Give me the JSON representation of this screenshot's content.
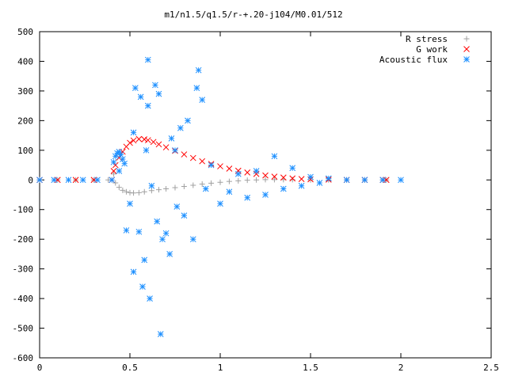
{
  "chart_data": {
    "type": "scatter",
    "title": "m1/n1.5/q1.5/r-+.20-j104/M0.01/512",
    "xlabel": "",
    "ylabel": "",
    "xlim": [
      0,
      2.5
    ],
    "ylim": [
      -600,
      500
    ],
    "x_ticks": [
      0,
      0.5,
      1,
      1.5,
      2,
      2.5
    ],
    "x_tick_labels": [
      "0",
      "0.5",
      "1",
      "1.5",
      "2",
      "2.5"
    ],
    "y_ticks": [
      500,
      400,
      300,
      200,
      100,
      0,
      -100,
      -200,
      -300,
      -400,
      -500,
      -600
    ],
    "y_tick_labels": [
      "500",
      "400",
      "300",
      "200",
      "100",
      "0",
      "-100",
      "-200",
      "-300",
      "-400",
      "-500",
      "-600"
    ],
    "grid": false,
    "legend_position": "top-right",
    "series": [
      {
        "name": "R stress",
        "marker": "plus",
        "color": "#a0a0a0",
        "points": [
          [
            0,
            0
          ],
          [
            0.1,
            0
          ],
          [
            0.2,
            0
          ],
          [
            0.3,
            0
          ],
          [
            0.38,
            0
          ],
          [
            0.41,
            20
          ],
          [
            0.42,
            -10
          ],
          [
            0.44,
            -25
          ],
          [
            0.46,
            -35
          ],
          [
            0.48,
            -40
          ],
          [
            0.5,
            -43
          ],
          [
            0.52,
            -44
          ],
          [
            0.55,
            -43
          ],
          [
            0.58,
            -40
          ],
          [
            0.62,
            -36
          ],
          [
            0.66,
            -33
          ],
          [
            0.7,
            -30
          ],
          [
            0.75,
            -26
          ],
          [
            0.8,
            -22
          ],
          [
            0.85,
            -18
          ],
          [
            0.9,
            -14
          ],
          [
            0.95,
            -11
          ],
          [
            1.0,
            -8
          ],
          [
            1.05,
            -5
          ],
          [
            1.1,
            -3
          ],
          [
            1.15,
            -1
          ],
          [
            1.2,
            0
          ],
          [
            1.25,
            1
          ],
          [
            1.3,
            1
          ],
          [
            1.35,
            1
          ],
          [
            1.4,
            1
          ],
          [
            1.5,
            0
          ],
          [
            1.6,
            0
          ],
          [
            1.7,
            0
          ],
          [
            1.8,
            0
          ],
          [
            1.9,
            0
          ],
          [
            1.92,
            0
          ]
        ]
      },
      {
        "name": "G work",
        "marker": "cross",
        "color": "#ff0000",
        "points": [
          [
            0,
            0
          ],
          [
            0.1,
            0
          ],
          [
            0.2,
            0
          ],
          [
            0.3,
            0
          ],
          [
            0.4,
            0
          ],
          [
            0.41,
            30
          ],
          [
            0.42,
            50
          ],
          [
            0.44,
            75
          ],
          [
            0.46,
            95
          ],
          [
            0.48,
            112
          ],
          [
            0.5,
            125
          ],
          [
            0.52,
            133
          ],
          [
            0.55,
            138
          ],
          [
            0.58,
            137
          ],
          [
            0.6,
            134
          ],
          [
            0.63,
            128
          ],
          [
            0.66,
            120
          ],
          [
            0.7,
            110
          ],
          [
            0.75,
            98
          ],
          [
            0.8,
            86
          ],
          [
            0.85,
            74
          ],
          [
            0.9,
            63
          ],
          [
            0.95,
            54
          ],
          [
            1.0,
            46
          ],
          [
            1.05,
            38
          ],
          [
            1.1,
            31
          ],
          [
            1.15,
            25
          ],
          [
            1.2,
            20
          ],
          [
            1.25,
            15
          ],
          [
            1.3,
            11
          ],
          [
            1.35,
            8
          ],
          [
            1.4,
            5
          ],
          [
            1.45,
            3
          ],
          [
            1.5,
            2
          ],
          [
            1.6,
            1
          ],
          [
            1.7,
            0
          ],
          [
            1.8,
            0
          ],
          [
            1.9,
            0
          ],
          [
            1.92,
            0
          ]
        ]
      },
      {
        "name": "Acoustic flux",
        "marker": "star",
        "color": "#1e90ff",
        "points": [
          [
            0,
            0
          ],
          [
            0.08,
            0
          ],
          [
            0.16,
            0
          ],
          [
            0.24,
            0
          ],
          [
            0.32,
            0
          ],
          [
            0.4,
            0
          ],
          [
            0.41,
            60
          ],
          [
            0.42,
            80
          ],
          [
            0.43,
            90
          ],
          [
            0.44,
            95
          ],
          [
            0.45,
            85
          ],
          [
            0.46,
            70
          ],
          [
            0.44,
            30
          ],
          [
            0.47,
            55
          ],
          [
            0.48,
            -170
          ],
          [
            0.5,
            -80
          ],
          [
            0.52,
            -310
          ],
          [
            0.52,
            160
          ],
          [
            0.53,
            310
          ],
          [
            0.55,
            -175
          ],
          [
            0.56,
            280
          ],
          [
            0.57,
            -360
          ],
          [
            0.58,
            -270
          ],
          [
            0.59,
            100
          ],
          [
            0.6,
            250
          ],
          [
            0.6,
            405
          ],
          [
            0.61,
            -400
          ],
          [
            0.62,
            -20
          ],
          [
            0.64,
            320
          ],
          [
            0.65,
            -140
          ],
          [
            0.66,
            290
          ],
          [
            0.67,
            -520
          ],
          [
            0.68,
            -200
          ],
          [
            0.7,
            -180
          ],
          [
            0.72,
            -250
          ],
          [
            0.73,
            140
          ],
          [
            0.75,
            100
          ],
          [
            0.76,
            -90
          ],
          [
            0.78,
            175
          ],
          [
            0.8,
            -120
          ],
          [
            0.82,
            200
          ],
          [
            0.85,
            -200
          ],
          [
            0.87,
            310
          ],
          [
            0.88,
            370
          ],
          [
            0.9,
            270
          ],
          [
            0.92,
            -30
          ],
          [
            0.95,
            50
          ],
          [
            1.0,
            -80
          ],
          [
            1.05,
            -40
          ],
          [
            1.1,
            20
          ],
          [
            1.15,
            -60
          ],
          [
            1.2,
            30
          ],
          [
            1.25,
            -50
          ],
          [
            1.3,
            80
          ],
          [
            1.35,
            -30
          ],
          [
            1.4,
            40
          ],
          [
            1.45,
            -20
          ],
          [
            1.5,
            10
          ],
          [
            1.55,
            -10
          ],
          [
            1.6,
            5
          ],
          [
            1.7,
            0
          ],
          [
            1.8,
            0
          ],
          [
            1.9,
            0
          ],
          [
            2.0,
            0
          ]
        ]
      }
    ]
  }
}
